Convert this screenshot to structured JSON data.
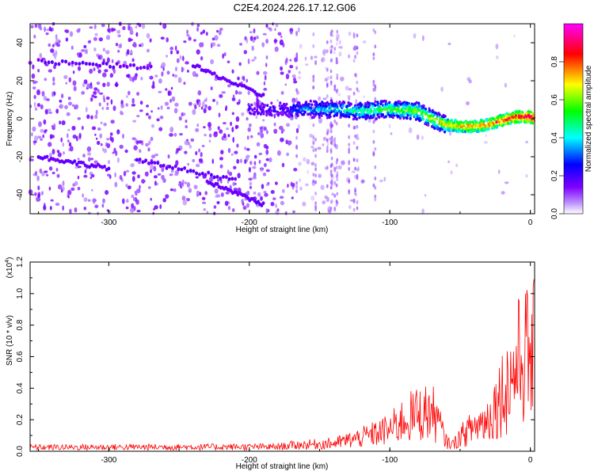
{
  "title": "C2E4.2024.226.17.12.G06",
  "chart_data": [
    {
      "type": "heatmap",
      "title": "C2E4.2024.226.17.12.G06",
      "xlabel": "Height of straight line (km)",
      "ylabel": "Frequency (Hz)",
      "xlim": [
        -356,
        3
      ],
      "ylim": [
        -50,
        50
      ],
      "xticks": [
        -300,
        -200,
        -100,
        0
      ],
      "yticks": [
        -40,
        -20,
        0,
        20,
        40
      ],
      "colorbar": {
        "label": "Normalized spectral amplitude",
        "range": [
          0.0,
          1.0
        ],
        "ticks": [
          0.0,
          0.2,
          0.4,
          0.6,
          0.8
        ],
        "colormap": [
          "#ffffff",
          "#7f00ff",
          "#0000ff",
          "#00ffff",
          "#00ff00",
          "#ffff00",
          "#ff0000",
          "#ff00ff"
        ]
      },
      "ridge": {
        "x": [
          -165,
          -140,
          -120,
          -100,
          -80,
          -70,
          -60,
          -50,
          -40,
          -30,
          -20,
          -10,
          0,
          3
        ],
        "y": [
          5,
          5,
          4,
          5,
          4,
          0,
          -3,
          -4,
          -4,
          -3,
          -1,
          1,
          1,
          0
        ]
      }
    },
    {
      "type": "line",
      "xlabel": "Height of straight line (km)",
      "ylabel": "SNR (10 * v/v)",
      "scale_note": "(x10",
      "scale_exp": "4",
      "xlim": [
        -356,
        3
      ],
      "ylim": [
        0,
        12000
      ],
      "xticks": [
        -300,
        -200,
        -100,
        0
      ],
      "yticks": [
        0,
        2000,
        4000,
        6000,
        8000,
        10000,
        12000
      ],
      "ytick_labels": [
        "0.0",
        "0.2",
        "0.4",
        "0.6",
        "0.8",
        "1.0",
        "1.2"
      ],
      "color": "#ff0000",
      "envelope": {
        "x": [
          -356,
          -180,
          -170,
          -140,
          -120,
          -100,
          -90,
          -80,
          -70,
          -65,
          -60,
          -55,
          -50,
          -40,
          -30,
          -20,
          -15,
          -10,
          -5,
          0,
          3
        ],
        "y": [
          400,
          450,
          600,
          800,
          1400,
          2200,
          3200,
          3800,
          4000,
          2800,
          1000,
          700,
          1500,
          2500,
          3300,
          6000,
          7000,
          8500,
          10000,
          9500,
          10000
        ]
      }
    }
  ]
}
